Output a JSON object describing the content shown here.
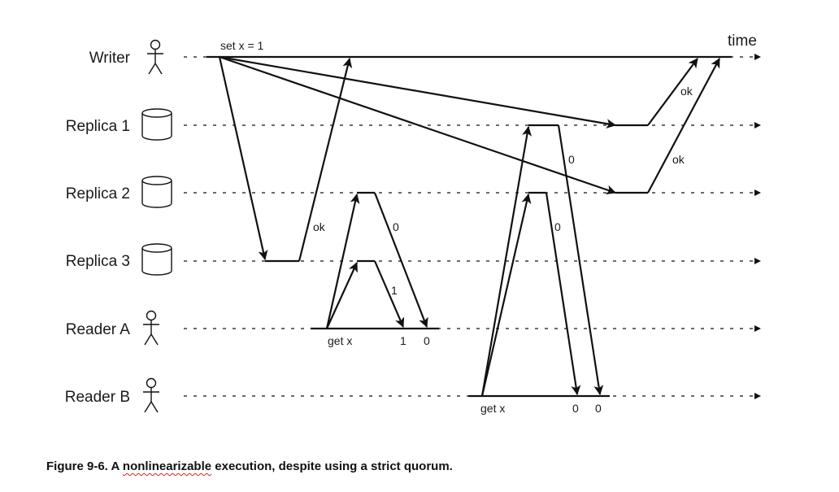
{
  "diagram": {
    "time_label": "time",
    "lanes": [
      {
        "id": "writer",
        "label": "Writer",
        "icon": "person-icon"
      },
      {
        "id": "replica1",
        "label": "Replica 1",
        "icon": "database-icon"
      },
      {
        "id": "replica2",
        "label": "Replica 2",
        "icon": "database-icon"
      },
      {
        "id": "replica3",
        "label": "Replica 3",
        "icon": "database-icon"
      },
      {
        "id": "readerA",
        "label": "Reader A",
        "icon": "person-icon"
      },
      {
        "id": "readerB",
        "label": "Reader B",
        "icon": "person-icon"
      }
    ],
    "operations": {
      "write": "set x = 1",
      "read_a": "get x",
      "read_b": "get x"
    },
    "message_labels": {
      "replica3_ack": "ok",
      "replica1_ack": "ok",
      "replica2_ack": "ok",
      "readerA_from_replica2": "0",
      "readerA_from_replica3": "1",
      "readerB_from_replica1": "0",
      "readerB_from_replica2": "0"
    },
    "results": {
      "readerA": [
        "1",
        "0"
      ],
      "readerB": [
        "0",
        "0"
      ]
    }
  },
  "caption": {
    "prefix": "Figure 9-6. A ",
    "squiggly_word": "nonlinearizable",
    "suffix": " execution, despite using a strict quorum."
  }
}
